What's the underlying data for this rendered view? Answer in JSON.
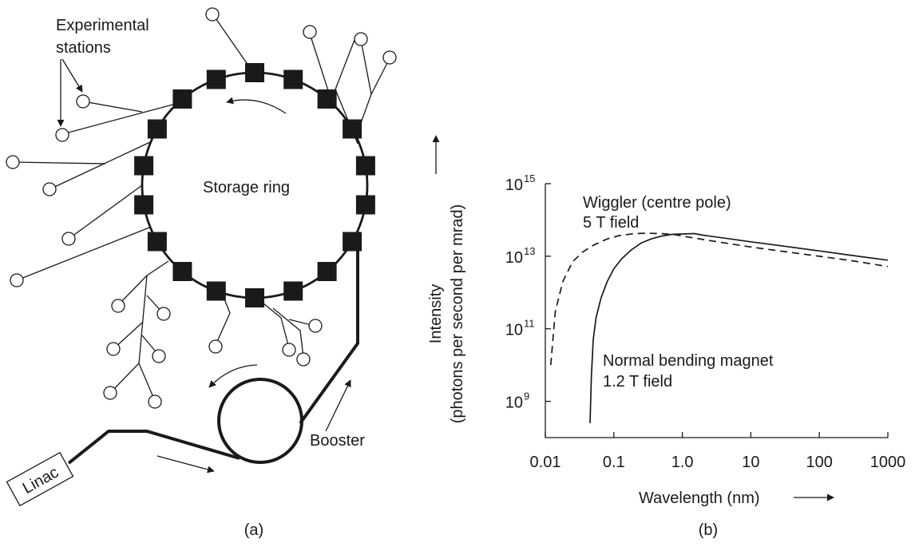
{
  "diagram": {
    "stations_label_line1": "Experimental",
    "stations_label_line2": "stations",
    "ring_label": "Storage ring",
    "booster_label": "Booster",
    "linac_label": "Linac",
    "caption_a": "(a)"
  },
  "chart_data": {
    "type": "line",
    "caption": "(b)",
    "xlabel": "Wavelength (nm)",
    "ylabel_line1": "Intensity",
    "ylabel_line2": "(photons per second per mrad)",
    "xscale": "log",
    "yscale": "log",
    "xlim": [
      0.01,
      1000
    ],
    "ylim": [
      100000000.0,
      1000000000000000.0
    ],
    "grid": false,
    "x_ticks": [
      {
        "value": 0.01,
        "label": "0.01"
      },
      {
        "value": 0.1,
        "label": "0.1"
      },
      {
        "value": 1,
        "label": "1.0"
      },
      {
        "value": 10,
        "label": "10"
      },
      {
        "value": 100,
        "label": "100"
      },
      {
        "value": 1000,
        "label": "1000"
      }
    ],
    "y_ticks": [
      {
        "value": 1000000000.0,
        "base": "10",
        "exp": "9"
      },
      {
        "value": 100000000000.0,
        "base": "10",
        "exp": "11"
      },
      {
        "value": 10000000000000.0,
        "base": "10",
        "exp": "13"
      },
      {
        "value": 1000000000000000.0,
        "base": "10",
        "exp": "15"
      }
    ],
    "series": [
      {
        "label_line1": "Wiggler (centre pole)",
        "label_line2": "5 T field",
        "style": "dashed",
        "x": [
          0.012,
          0.014,
          0.018,
          0.025,
          0.035,
          0.05,
          0.08,
          0.12,
          0.2,
          0.3,
          0.5,
          0.8,
          1.0,
          2,
          5,
          10,
          30,
          100,
          300,
          1000
        ],
        "y": [
          10000000000.0,
          300000000000.0,
          2000000000000.0,
          7000000000000.0,
          13000000000000.0,
          20000000000000.0,
          30000000000000.0,
          37000000000000.0,
          42000000000000.0,
          43000000000000.0,
          42000000000000.0,
          39000000000000.0,
          36000000000000.0,
          29000000000000.0,
          22000000000000.0,
          18000000000000.0,
          13500000000000.0,
          10000000000000.0,
          7500000000000.0,
          5200000000000.0
        ]
      },
      {
        "label_line1": "Normal bending magnet",
        "label_line2": "1.2 T field",
        "style": "solid",
        "x": [
          0.045,
          0.047,
          0.05,
          0.055,
          0.065,
          0.08,
          0.1,
          0.13,
          0.18,
          0.25,
          0.35,
          0.5,
          0.7,
          1.0,
          1.5,
          2,
          5,
          10,
          30,
          100,
          300,
          1000
        ],
        "y": [
          250000000.0,
          5000000000.0,
          50000000000.0,
          200000000000.0,
          700000000000.0,
          2000000000000.0,
          4500000000000.0,
          8500000000000.0,
          15000000000000.0,
          23000000000000.0,
          30000000000000.0,
          36000000000000.0,
          40000000000000.0,
          41000000000000.0,
          42000000000000.0,
          38000000000000.0,
          30000000000000.0,
          25000000000000.0,
          19000000000000.0,
          14000000000000.0,
          10500000000000.0,
          7800000000000.0
        ]
      }
    ]
  }
}
